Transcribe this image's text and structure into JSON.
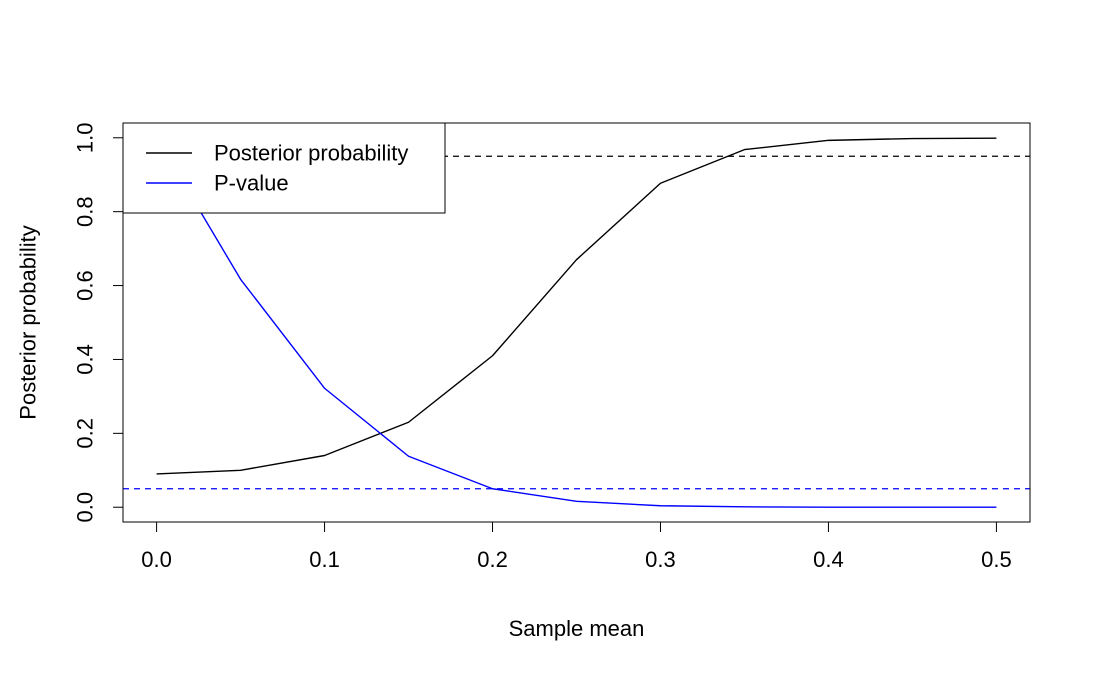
{
  "chart_data": {
    "type": "line",
    "title": "",
    "xlabel": "Sample mean",
    "ylabel": "Posterior probability",
    "xlim": [
      -0.02,
      0.52
    ],
    "ylim": [
      -0.04,
      1.04
    ],
    "x_ticks": [
      0.0,
      0.1,
      0.2,
      0.3,
      0.4,
      0.5
    ],
    "x_tick_labels": [
      "0.0",
      "0.1",
      "0.2",
      "0.3",
      "0.4",
      "0.5"
    ],
    "y_ticks": [
      0.0,
      0.2,
      0.4,
      0.6,
      0.8,
      1.0
    ],
    "y_tick_labels": [
      "0.0",
      "0.2",
      "0.4",
      "0.6",
      "0.8",
      "1.0"
    ],
    "grid": false,
    "legend_position": "top-left",
    "x": [
      0.0,
      0.05,
      0.1,
      0.15,
      0.2,
      0.25,
      0.3,
      0.35,
      0.4,
      0.45,
      0.5
    ],
    "series": [
      {
        "name": "Posterior probability",
        "color": "#000000",
        "values": [
          0.09,
          0.1,
          0.14,
          0.23,
          0.41,
          0.67,
          0.877,
          0.968,
          0.993,
          0.998,
          0.999
        ]
      },
      {
        "name": "P-value",
        "color": "#0000ff",
        "values": [
          1.0,
          0.617,
          0.322,
          0.138,
          0.05,
          0.016,
          0.004,
          0.001,
          0.0,
          0.0,
          0.0
        ]
      }
    ],
    "reference_lines": [
      {
        "y": 0.95,
        "color": "#000000",
        "style": "dashed"
      },
      {
        "y": 0.05,
        "color": "#0000ff",
        "style": "dashed"
      }
    ]
  }
}
